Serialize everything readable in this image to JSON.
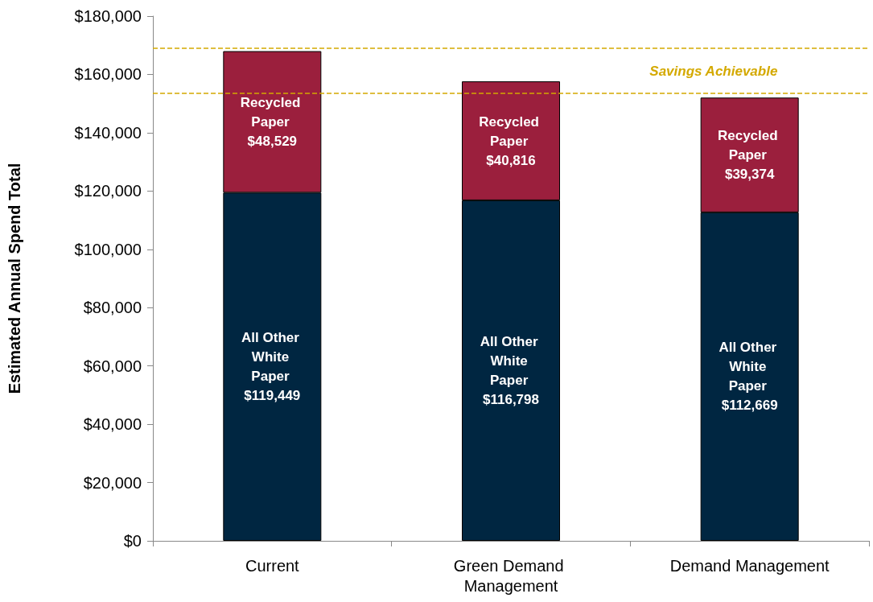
{
  "chart_data": {
    "type": "bar",
    "stacked": true,
    "ylabel": "Estimated Annual Spend Total",
    "categories": [
      "Current",
      "Green Demand Management",
      "Demand Management"
    ],
    "series": [
      {
        "name": "All Other White Paper",
        "color": "#002641",
        "values": [
          119449,
          116798,
          112669
        ],
        "value_labels": [
          "$119,449",
          "$116,798",
          "$112,669"
        ]
      },
      {
        "name": "Recycled Paper",
        "color": "#9b1f3d",
        "values": [
          48529,
          40816,
          39374
        ],
        "value_labels": [
          "$48,529",
          "$40,816",
          "$39,374"
        ]
      }
    ],
    "ylim": [
      0,
      180000
    ],
    "yticks": [
      {
        "value": 0,
        "label": "$0"
      },
      {
        "value": 20000,
        "label": "$20,000"
      },
      {
        "value": 40000,
        "label": "$40,000"
      },
      {
        "value": 60000,
        "label": "$60,000"
      },
      {
        "value": 80000,
        "label": "$80,000"
      },
      {
        "value": 100000,
        "label": "$100,000"
      },
      {
        "value": 120000,
        "label": "$120,000"
      },
      {
        "value": 140000,
        "label": "$140,000"
      },
      {
        "value": 160000,
        "label": "$160,000"
      },
      {
        "value": 180000,
        "label": "$180,000"
      }
    ],
    "ref_lines": [
      {
        "axis": "y",
        "value": 169000,
        "color": "#d4a900",
        "line_style": "dashed"
      },
      {
        "axis": "y",
        "value": 153500,
        "color": "#d4a900",
        "line_style": "dashed"
      }
    ],
    "annotations": [
      "Savings Achievable"
    ],
    "grid": false,
    "legend": false
  }
}
